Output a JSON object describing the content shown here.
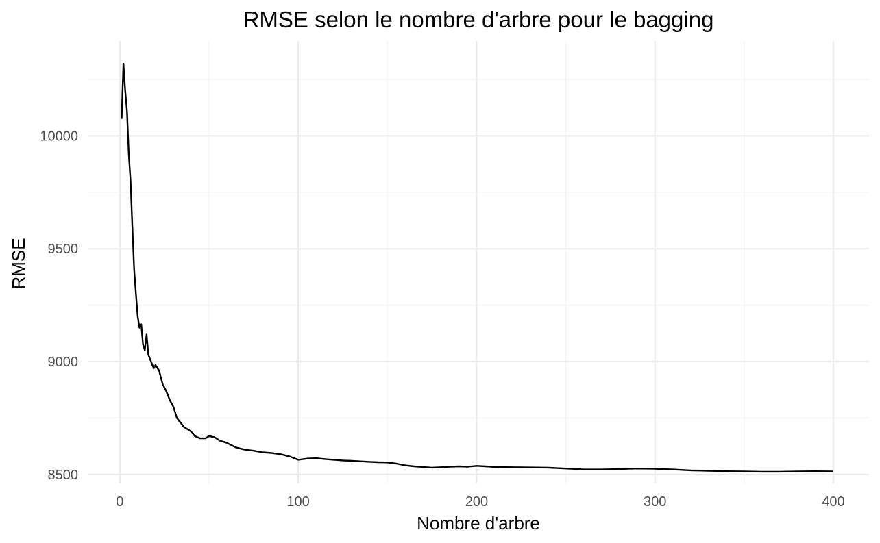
{
  "chart_data": {
    "type": "line",
    "title": "RMSE selon le nombre d'arbre pour le bagging",
    "xlabel": "Nombre d'arbre",
    "ylabel": "RMSE",
    "xlim": [
      -18,
      420
    ],
    "ylim": [
      8460,
      10420
    ],
    "x_ticks": [
      0,
      100,
      200,
      300,
      400
    ],
    "x_tick_labels": [
      "0",
      "100",
      "200",
      "300",
      "400"
    ],
    "x_minor_ticks": [
      50,
      150,
      250,
      350
    ],
    "y_ticks": [
      8500,
      9000,
      9500,
      10000
    ],
    "y_tick_labels": [
      "8500",
      "9000",
      "9500",
      "10000"
    ],
    "y_minor_ticks": [
      8750,
      9250,
      9750,
      10250
    ],
    "grid": true,
    "legend": "none",
    "series_color": "#000000",
    "series": [
      {
        "x": [
          1,
          2,
          3,
          4,
          5,
          6,
          7,
          8,
          9,
          10,
          11,
          12,
          13,
          14,
          15,
          16,
          17,
          18,
          19,
          20,
          22,
          24,
          26,
          28,
          30,
          32,
          34,
          36,
          38,
          40,
          42,
          45,
          48,
          50,
          53,
          56,
          60,
          65,
          70,
          75,
          80,
          85,
          90,
          95,
          100,
          105,
          110,
          115,
          120,
          125,
          130,
          135,
          140,
          145,
          150,
          155,
          160,
          165,
          170,
          175,
          180,
          185,
          190,
          195,
          200,
          205,
          210,
          220,
          230,
          240,
          250,
          260,
          270,
          280,
          290,
          300,
          310,
          320,
          330,
          340,
          350,
          360,
          370,
          380,
          390,
          400
        ],
        "values": [
          10075,
          10320,
          10200,
          10110,
          9920,
          9800,
          9600,
          9410,
          9300,
          9200,
          9150,
          9165,
          9075,
          9050,
          9120,
          9030,
          9010,
          8990,
          8970,
          8985,
          8960,
          8900,
          8870,
          8830,
          8800,
          8750,
          8730,
          8710,
          8700,
          8690,
          8670,
          8660,
          8660,
          8670,
          8665,
          8650,
          8640,
          8620,
          8610,
          8605,
          8598,
          8595,
          8590,
          8580,
          8565,
          8570,
          8572,
          8568,
          8565,
          8562,
          8560,
          8558,
          8556,
          8554,
          8553,
          8548,
          8540,
          8536,
          8533,
          8530,
          8532,
          8534,
          8536,
          8534,
          8538,
          8536,
          8533,
          8532,
          8531,
          8530,
          8526,
          8522,
          8522,
          8524,
          8526,
          8525,
          8522,
          8518,
          8516,
          8514,
          8513,
          8512,
          8512,
          8513,
          8514,
          8513
        ]
      }
    ]
  }
}
